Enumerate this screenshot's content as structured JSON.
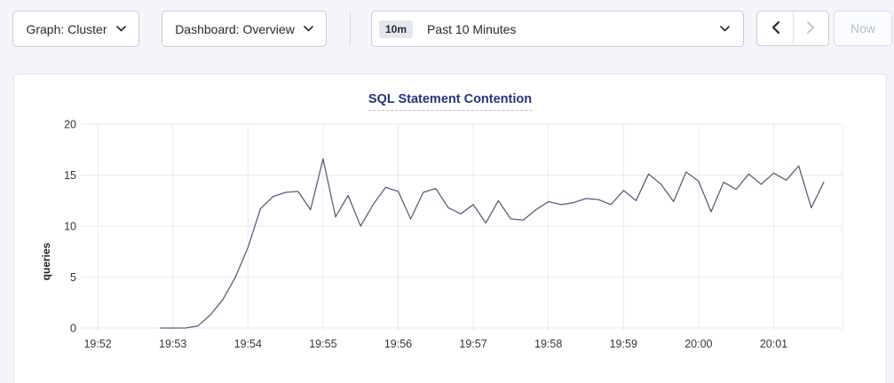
{
  "toolbar": {
    "graph_dropdown": {
      "label": "Graph: Cluster"
    },
    "dashboard_dropdown": {
      "label": "Dashboard: Overview"
    },
    "time_picker": {
      "badge": "10m",
      "label": "Past 10 Minutes"
    },
    "now_button": {
      "label": "Now"
    }
  },
  "colors": {
    "page_background": "#f4f5f9",
    "card_background": "#ffffff",
    "title_text": "#26357d",
    "line": "#566180",
    "gridline": "#e8eaef",
    "tick_text": "#33373f",
    "disabled_text": "#b6bcc9"
  },
  "chart_data": {
    "type": "line",
    "title": "SQL Statement Contention",
    "xlabel": "",
    "ylabel": "queries",
    "ylim": [
      0,
      20
    ],
    "yticks": [
      0,
      5,
      10,
      15,
      20
    ],
    "x_domain": [
      "19:51:50",
      "20:01:55"
    ],
    "xticks": [
      "19:52",
      "19:53",
      "19:54",
      "19:55",
      "19:56",
      "19:57",
      "19:58",
      "19:59",
      "20:00",
      "20:01"
    ],
    "grid": true,
    "legend": "none",
    "series": [
      {
        "name": "queries",
        "color": "#566180",
        "start": "19:52:50",
        "interval_seconds": 10,
        "values": [
          0,
          0,
          0,
          0.2,
          1.3,
          2.8,
          5.0,
          7.9,
          11.7,
          12.9,
          13.3,
          13.4,
          11.6,
          16.6,
          10.9,
          13.0,
          10.0,
          12.1,
          13.8,
          13.4,
          10.7,
          13.3,
          13.7,
          11.8,
          11.2,
          12.1,
          10.3,
          12.5,
          10.7,
          10.6,
          11.6,
          12.4,
          12.1,
          12.3,
          12.7,
          12.6,
          12.1,
          13.5,
          12.5,
          15.1,
          14.1,
          12.4,
          15.3,
          14.4,
          11.4,
          14.3,
          13.6,
          15.1,
          14.1,
          15.2,
          14.5,
          15.9,
          11.8,
          14.3
        ]
      }
    ]
  }
}
